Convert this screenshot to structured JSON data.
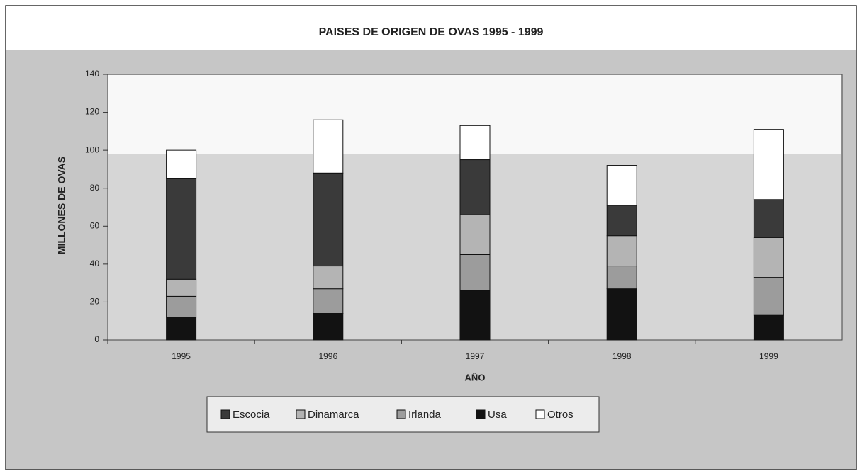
{
  "chart_data": {
    "type": "stacked_bar",
    "title": "PAISES DE ORIGEN DE OVAS 1995 - 1999",
    "x_label": "AÑO",
    "y_label": "MILLONES DE OVAS",
    "categories": [
      "1995",
      "1996",
      "1997",
      "1998",
      "1999"
    ],
    "series": [
      {
        "name": "Escocia",
        "color": "#3a3a3a",
        "values": [
          53,
          49,
          29,
          16,
          20
        ]
      },
      {
        "name": "Dinamarca",
        "color": "#b4b4b4",
        "values": [
          9,
          12,
          21,
          16,
          21
        ]
      },
      {
        "name": "Irlanda",
        "color": "#9c9c9c",
        "values": [
          11,
          13,
          19,
          12,
          20
        ]
      },
      {
        "name": "Usa",
        "color": "#121212",
        "values": [
          12,
          14,
          26,
          27,
          13
        ]
      },
      {
        "name": "Otros",
        "color": "#ffffff",
        "values": [
          15,
          28,
          18,
          21,
          37
        ]
      }
    ],
    "ylim": [
      0,
      140
    ],
    "yticks": [
      0,
      20,
      40,
      60,
      80,
      100,
      120,
      140
    ],
    "grid": false,
    "legend": "bottom"
  }
}
